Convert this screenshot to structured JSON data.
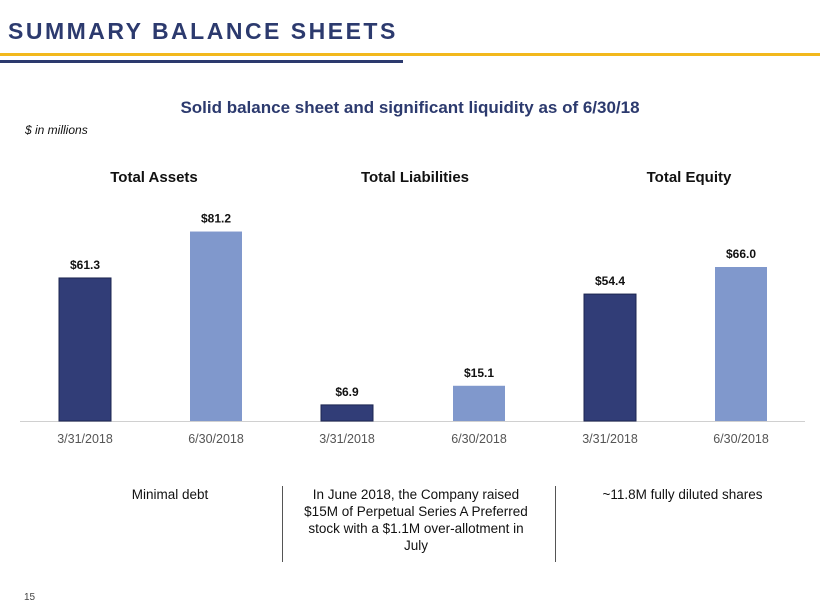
{
  "header": {
    "title": "SUMMARY BALANCE SHEETS",
    "subtitle": "Solid balance sheet and significant liquidity  as of 6/30/18",
    "units": "$ in millions"
  },
  "colors": {
    "dark_bar": "#313d77",
    "light_bar": "#8098cc",
    "gold": "#f2b81d",
    "navy": "#2c3a6e"
  },
  "chart_data": {
    "type": "bar",
    "groups": [
      {
        "title": "Total Assets",
        "categories": [
          "3/31/2018",
          "6/30/2018"
        ],
        "values": [
          61.3,
          81.2
        ],
        "labels": [
          "$61.3",
          "$81.2"
        ]
      },
      {
        "title": "Total Liabilities",
        "categories": [
          "3/31/2018",
          "6/30/2018"
        ],
        "values": [
          6.9,
          15.1
        ],
        "labels": [
          "$6.9",
          "$15.1"
        ]
      },
      {
        "title": "Total Equity",
        "categories": [
          "3/31/2018",
          "6/30/2018"
        ],
        "values": [
          54.4,
          66.0
        ],
        "labels": [
          "$54.4",
          "$66.0"
        ]
      }
    ],
    "ylim": [
      0,
      90
    ],
    "grid": false,
    "legend": "none"
  },
  "notes": [
    "Minimal debt",
    "In June 2018, the Company raised $15M of Perpetual Series A Preferred stock with a $1.1M over-allotment  in July",
    "~11.8M fully diluted shares"
  ],
  "page_number": "15"
}
